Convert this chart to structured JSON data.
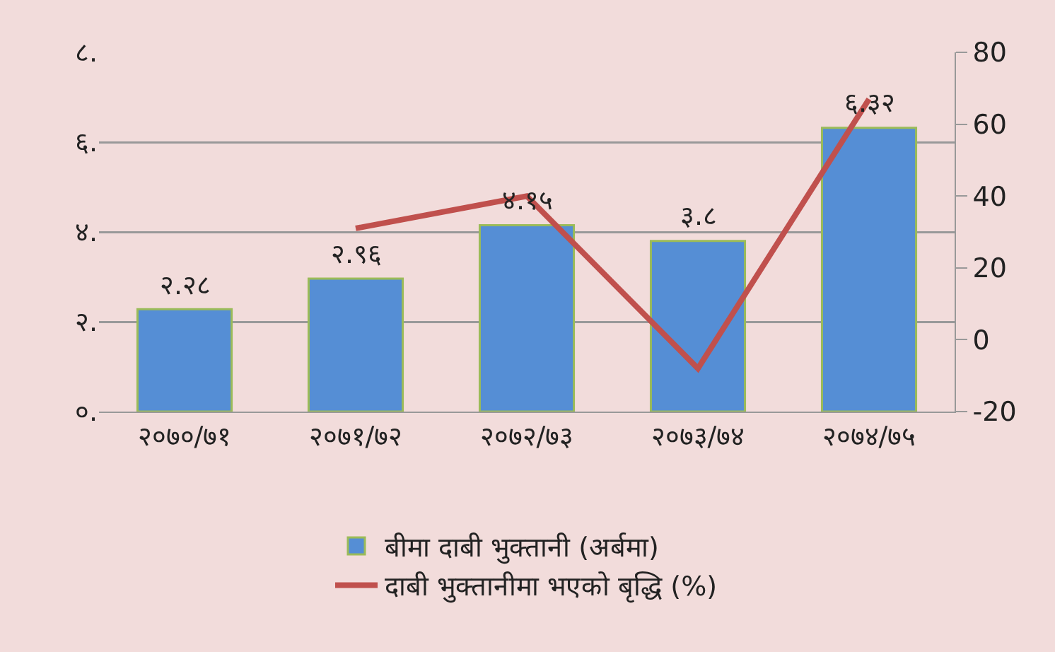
{
  "chart_data": {
    "type": "bar",
    "categories": [
      "२०७०/७१",
      "२०७१/७२",
      "२०७२/७३",
      "२०७३/७४",
      "२०७४/७५"
    ],
    "series": [
      {
        "name": "बीमा दाबी भुक्तानी (अर्बमा)",
        "type": "bar",
        "color": "#558ed5",
        "values": [
          2.28,
          2.96,
          4.15,
          3.8,
          6.32
        ],
        "value_labels": [
          "२.२८",
          "२.९६",
          "४.१५",
          "३.८",
          "६.३२"
        ]
      },
      {
        "name": "दाबी भुक्तानीमा भएको बृद्धि (%)",
        "type": "line",
        "axis": "y2",
        "color": "#c0504d",
        "values": [
          null,
          31,
          40,
          -8,
          67
        ]
      }
    ],
    "ylim": [
      0,
      8
    ],
    "yticks": [
      {
        "value": 0,
        "label": "०."
      },
      {
        "value": 2,
        "label": "२."
      },
      {
        "value": 4,
        "label": "४."
      },
      {
        "value": 6,
        "label": "६."
      },
      {
        "value": 8,
        "label": "८."
      }
    ],
    "y2lim": [
      -20,
      80
    ],
    "y2ticks": [
      -20,
      0,
      20,
      40,
      60,
      80
    ],
    "grid": "y",
    "legend": "bottom",
    "marker": "none",
    "line_style": "solid"
  }
}
